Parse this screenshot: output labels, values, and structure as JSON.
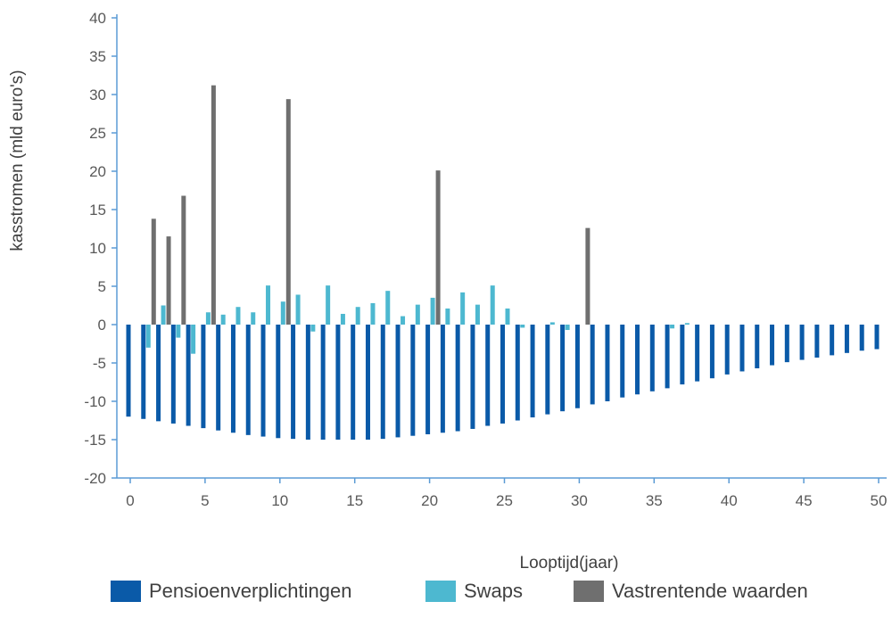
{
  "chart_data": {
    "type": "bar",
    "xlabel": "Looptijd(jaar)",
    "ylabel": "kasstromen (mld euro's)",
    "ylim": [
      -20,
      40
    ],
    "xlim": [
      0,
      50
    ],
    "yticks": [
      40,
      35,
      30,
      25,
      20,
      15,
      10,
      5,
      0,
      -5,
      -10,
      -15,
      -20
    ],
    "xticks": [
      0,
      5,
      10,
      15,
      20,
      25,
      30,
      35,
      40,
      45,
      50
    ],
    "grid": false,
    "legend_position": "bottom",
    "categories": [
      0,
      1,
      2,
      3,
      4,
      5,
      6,
      7,
      8,
      9,
      10,
      11,
      12,
      13,
      14,
      15,
      16,
      17,
      18,
      19,
      20,
      21,
      22,
      23,
      24,
      25,
      26,
      27,
      28,
      29,
      30,
      31,
      32,
      33,
      34,
      35,
      36,
      37,
      38,
      39,
      40,
      41,
      42,
      43,
      44,
      45,
      46,
      47,
      48,
      49,
      50
    ],
    "series": [
      {
        "name": "Pensioenverplichtingen",
        "color": "#0a5aa8",
        "values": [
          -12.0,
          -12.3,
          -12.6,
          -12.9,
          -13.2,
          -13.5,
          -13.8,
          -14.1,
          -14.4,
          -14.6,
          -14.8,
          -14.9,
          -15.0,
          -15.0,
          -15.0,
          -15.0,
          -15.0,
          -14.9,
          -14.7,
          -14.5,
          -14.3,
          -14.1,
          -13.9,
          -13.6,
          -13.2,
          -12.9,
          -12.5,
          -12.1,
          -11.7,
          -11.3,
          -10.9,
          -10.4,
          -10.0,
          -9.5,
          -9.1,
          -8.7,
          -8.3,
          -7.8,
          -7.4,
          -7.0,
          -6.5,
          -6.1,
          -5.7,
          -5.3,
          -4.9,
          -4.6,
          -4.3,
          -4.0,
          -3.7,
          -3.4,
          -3.2
        ]
      },
      {
        "name": "Swaps",
        "color": "#4db8d0",
        "values": [
          0,
          -3.0,
          2.5,
          -1.7,
          -3.8,
          1.6,
          1.3,
          2.3,
          1.6,
          5.1,
          3.0,
          3.9,
          -0.9,
          5.1,
          1.4,
          2.3,
          2.8,
          4.4,
          1.1,
          2.6,
          3.5,
          2.1,
          4.2,
          2.6,
          5.1,
          2.1,
          -0.4,
          0,
          0.3,
          -0.7,
          0,
          0,
          0,
          0,
          0,
          0,
          -0.5,
          0.2,
          0,
          0,
          0,
          0,
          0,
          0,
          0,
          0,
          0,
          0,
          0,
          0,
          0
        ]
      },
      {
        "name": "Vastrentende waarden",
        "color": "#6f6f6f",
        "values": [
          0,
          13.8,
          11.5,
          16.8,
          0,
          31.2,
          0,
          0,
          0,
          0,
          29.4,
          0,
          0,
          0,
          0,
          0,
          0,
          0,
          0,
          0,
          20.1,
          0,
          0,
          0,
          0,
          0,
          0,
          0,
          0,
          0,
          12.6,
          0,
          0,
          0,
          0,
          0,
          0,
          0,
          0,
          0,
          0,
          0,
          0,
          0,
          0,
          0,
          0,
          0,
          0,
          0,
          0
        ]
      }
    ]
  }
}
